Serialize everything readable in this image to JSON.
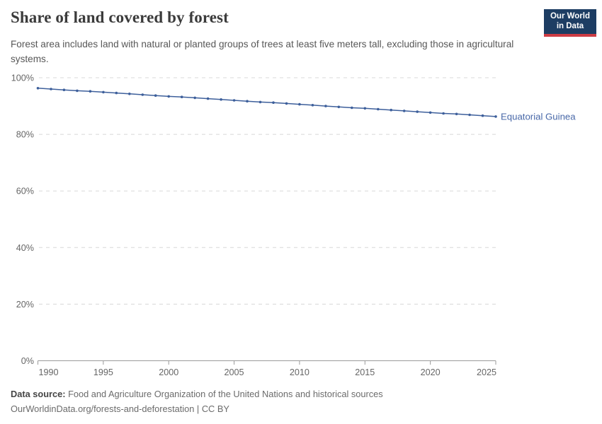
{
  "header": {
    "title": "Share of land covered by forest",
    "subtitle": "Forest area includes land with natural or planted groups of trees at least five meters tall, excluding those in agricultural systems.",
    "logo": {
      "line1": "Our World",
      "line2": "in Data"
    }
  },
  "chart_data": {
    "type": "line",
    "title": "Share of land covered by forest",
    "entity_label": "Equatorial Guinea",
    "x": [
      1990,
      1991,
      1992,
      1993,
      1994,
      1995,
      1996,
      1997,
      1998,
      1999,
      2000,
      2001,
      2002,
      2003,
      2004,
      2005,
      2006,
      2007,
      2008,
      2009,
      2010,
      2011,
      2012,
      2013,
      2014,
      2015,
      2016,
      2017,
      2018,
      2019,
      2020,
      2021,
      2022,
      2023,
      2024,
      2025
    ],
    "series": [
      {
        "name": "Equatorial Guinea",
        "values": [
          96.3,
          96.0,
          95.7,
          95.4,
          95.2,
          94.9,
          94.6,
          94.3,
          94.0,
          93.7,
          93.4,
          93.2,
          92.9,
          92.6,
          92.3,
          92.0,
          91.7,
          91.4,
          91.2,
          90.9,
          90.6,
          90.3,
          90.0,
          89.7,
          89.4,
          89.2,
          88.9,
          88.6,
          88.3,
          88.0,
          87.7,
          87.4,
          87.2,
          86.9,
          86.6,
          86.3
        ]
      }
    ],
    "xlabel": "",
    "ylabel": "",
    "ylim": [
      0,
      100
    ],
    "yticks": [
      0,
      20,
      40,
      60,
      80,
      100
    ],
    "ytick_suffix": "%",
    "xticks": [
      1990,
      1995,
      2000,
      2005,
      2010,
      2015,
      2020,
      2025
    ],
    "grid": "horizontal-dashed",
    "legend_position": "end-of-line-label"
  },
  "colors": {
    "line": "#3d5f9b",
    "entity_label": "#4868a8",
    "gridline": "#d8d8d8",
    "axis": "#9a9a9a",
    "tick_text": "#666666",
    "logo_bg": "#1d3d63",
    "logo_accent": "#cd3c44"
  },
  "footer": {
    "datasource_label": "Data source:",
    "datasource_text": " Food and Agriculture Organization of the United Nations and historical sources",
    "link_line": "OurWorldinData.org/forests-and-deforestation | CC BY"
  }
}
